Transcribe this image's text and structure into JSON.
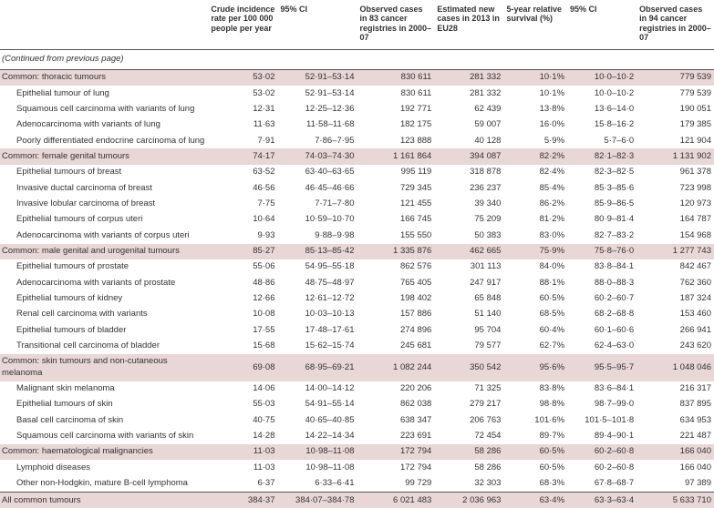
{
  "headers": {
    "label": "",
    "crude": "Crude incidence rate per 100 000 people per year",
    "ci1": "95% CI",
    "obs83": "Observed cases in 83 cancer registries in 2000–07",
    "est": "Estimated new cases in 2013 in EU28",
    "surv": "5-year relative survival (%)",
    "ci2": "95% CI",
    "obs94": "Observed cases in 94 cancer registries in 2000–07"
  },
  "continued": "(Continued from previous page)",
  "rows": [
    {
      "t": "group",
      "label": "Common: thoracic tumours",
      "crude": "53·02",
      "ci1": "52·91–53·14",
      "obs83": "830 611",
      "est": "281 332",
      "surv": "10·1%",
      "ci2": "10·0–10·2",
      "obs94": "779 539"
    },
    {
      "t": "indent",
      "label": "Epithelial tumour of lung",
      "crude": "53·02",
      "ci1": "52·91–53·14",
      "obs83": "830 611",
      "est": "281 332",
      "surv": "10·1%",
      "ci2": "10·0–10·2",
      "obs94": "779 539"
    },
    {
      "t": "indent",
      "label": "Squamous cell carcinoma with variants of lung",
      "crude": "12·31",
      "ci1": "12·25–12·36",
      "obs83": "192 771",
      "est": "62 439",
      "surv": "13·8%",
      "ci2": "13·6–14·0",
      "obs94": "190 051"
    },
    {
      "t": "indent",
      "label": "Adenocarcinoma with variants of lung",
      "crude": "11·63",
      "ci1": "11·58–11·68",
      "obs83": "182 175",
      "est": "59 007",
      "surv": "16·0%",
      "ci2": "15·8–16·2",
      "obs94": "179 385"
    },
    {
      "t": "indent",
      "label": "Poorly differentiated endocrine carcinoma of lung",
      "crude": "7·91",
      "ci1": "7·86–7·95",
      "obs83": "123 888",
      "est": "40 128",
      "surv": "5·9%",
      "ci2": "5·7–6·0",
      "obs94": "121 904"
    },
    {
      "t": "group",
      "label": "Common: female genital tumours",
      "crude": "74·17",
      "ci1": "74·03–74·30",
      "obs83": "1 161 864",
      "est": "394 087",
      "surv": "82·2%",
      "ci2": "82·1–82·3",
      "obs94": "1 131 902"
    },
    {
      "t": "indent",
      "label": "Epithelial tumours of breast",
      "crude": "63·52",
      "ci1": "63·40–63·65",
      "obs83": "995 119",
      "est": "318 878",
      "surv": "82·4%",
      "ci2": "82·3–82·5",
      "obs94": "961 378"
    },
    {
      "t": "indent",
      "label": "Invasive ductal carcinoma of breast",
      "crude": "46·56",
      "ci1": "46·45–46·66",
      "obs83": "729 345",
      "est": "236 237",
      "surv": "85·4%",
      "ci2": "85·3–85·6",
      "obs94": "723 998"
    },
    {
      "t": "indent",
      "label": "Invasive lobular carcinoma of breast",
      "crude": "7·75",
      "ci1": "7·71–7·80",
      "obs83": "121 455",
      "est": "39 340",
      "surv": "86·2%",
      "ci2": "85·9–86·5",
      "obs94": "120 973"
    },
    {
      "t": "indent",
      "label": "Epithelial tumours of corpus uteri",
      "crude": "10·64",
      "ci1": "10·59–10·70",
      "obs83": "166 745",
      "est": "75 209",
      "surv": "81·2%",
      "ci2": "80·9–81·4",
      "obs94": "164 787"
    },
    {
      "t": "indent",
      "label": "Adenocarcinoma with variants of corpus uteri",
      "crude": "9·93",
      "ci1": "9·88–9·98",
      "obs83": "155 550",
      "est": "50 383",
      "surv": "83·0%",
      "ci2": "82·7–83·2",
      "obs94": "154 968"
    },
    {
      "t": "group",
      "label": "Common: male genital and urogenital tumours",
      "crude": "85·27",
      "ci1": "85·13–85·42",
      "obs83": "1 335 876",
      "est": "462 665",
      "surv": "75·9%",
      "ci2": "75·8–76·0",
      "obs94": "1 277 743"
    },
    {
      "t": "indent",
      "label": "Epithelial tumours of prostate",
      "crude": "55·06",
      "ci1": "54·95–55·18",
      "obs83": "862 576",
      "est": "301 113",
      "surv": "84·0%",
      "ci2": "83·8–84·1",
      "obs94": "842 467"
    },
    {
      "t": "indent",
      "label": "Adenocarcinoma with variants of prostate",
      "crude": "48·86",
      "ci1": "48·75–48·97",
      "obs83": "765 405",
      "est": "247 917",
      "surv": "88·1%",
      "ci2": "88·0–88·3",
      "obs94": "762 360"
    },
    {
      "t": "indent",
      "label": "Epithelial tumours of kidney",
      "crude": "12·66",
      "ci1": "12·61–12·72",
      "obs83": "198 402",
      "est": "65 848",
      "surv": "60·5%",
      "ci2": "60·2–60·7",
      "obs94": "187 324"
    },
    {
      "t": "indent",
      "label": "Renal cell carcinoma with variants",
      "crude": "10·08",
      "ci1": "10·03–10·13",
      "obs83": "157 886",
      "est": "51 140",
      "surv": "68·5%",
      "ci2": "68·2–68·8",
      "obs94": "153 460"
    },
    {
      "t": "indent",
      "label": "Epithelial tumours of bladder",
      "crude": "17·55",
      "ci1": "17·48–17·61",
      "obs83": "274 896",
      "est": "95 704",
      "surv": "60·4%",
      "ci2": "60·1–60·6",
      "obs94": "266 941"
    },
    {
      "t": "indent",
      "label": "Transitional cell carcinoma of bladder",
      "crude": "15·68",
      "ci1": "15·62–15·74",
      "obs83": "245 681",
      "est": "79 577",
      "surv": "62·7%",
      "ci2": "62·4–63·0",
      "obs94": "243 620"
    },
    {
      "t": "group",
      "label": "Common: skin tumours and non-cutaneous melanoma",
      "crude": "69·08",
      "ci1": "68·95–69·21",
      "obs83": "1 082 244",
      "est": "350 542",
      "surv": "95·6%",
      "ci2": "95·5–95·7",
      "obs94": "1 048 046"
    },
    {
      "t": "indent",
      "label": "Malignant skin melanoma",
      "crude": "14·06",
      "ci1": "14·00–14·12",
      "obs83": "220 206",
      "est": "71 325",
      "surv": "83·8%",
      "ci2": "83·6–84·1",
      "obs94": "216 317"
    },
    {
      "t": "indent",
      "label": "Epithelial tumours of skin",
      "crude": "55·03",
      "ci1": "54·91–55·14",
      "obs83": "862 038",
      "est": "279 217",
      "surv": "98·8%",
      "ci2": "98·7–99·0",
      "obs94": "837 895"
    },
    {
      "t": "indent",
      "label": "Basal cell carcinoma of skin",
      "crude": "40·75",
      "ci1": "40·65–40·85",
      "obs83": "638 347",
      "est": "206 763",
      "surv": "101·6%",
      "ci2": "101·5–101·8",
      "obs94": "634 953"
    },
    {
      "t": "indent",
      "label": "Squamous cell carcinoma with variants of skin",
      "crude": "14·28",
      "ci1": "14·22–14·34",
      "obs83": "223 691",
      "est": "72 454",
      "surv": "89·7%",
      "ci2": "89·4–90·1",
      "obs94": "221 487"
    },
    {
      "t": "group",
      "label": "Common: haematological malignancies",
      "crude": "11·03",
      "ci1": "10·98–11·08",
      "obs83": "172 794",
      "est": "58 286",
      "surv": "60·5%",
      "ci2": "60·2–60·8",
      "obs94": "166 040"
    },
    {
      "t": "indent",
      "label": "Lymphoid diseases",
      "crude": "11·03",
      "ci1": "10·98–11·08",
      "obs83": "172 794",
      "est": "58 286",
      "surv": "60·5%",
      "ci2": "60·2–60·8",
      "obs94": "166 040"
    },
    {
      "t": "indent",
      "label": "Other non-Hodgkin, mature B-cell lymphoma",
      "crude": "6·37",
      "ci1": "6·33–6·41",
      "obs83": "99 729",
      "est": "32 303",
      "surv": "68·3%",
      "ci2": "67·8–68·7",
      "obs94": "97 389"
    },
    {
      "t": "total",
      "label": "All common tumours",
      "crude": "384·37",
      "ci1": "384·07–384·78",
      "obs83": "6 021 483",
      "est": "2 036 963",
      "surv": "63·4%",
      "ci2": "63·3–63·4",
      "obs94": "5 633 710"
    }
  ],
  "colors": {
    "group_bg": "#e9d6d6",
    "border": "#555555",
    "text": "#333333"
  }
}
